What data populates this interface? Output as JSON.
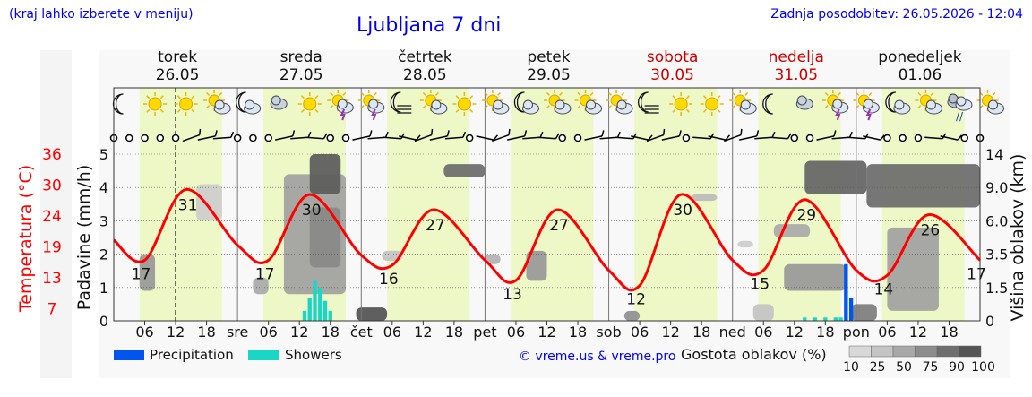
{
  "header": {
    "left_note": "(kraj lahko izberete v meniju)",
    "title": "Ljubljana 7 dni",
    "updated": "Zadnja posodobitev: 26.05.2026 - 12:04"
  },
  "days": [
    {
      "name": "torek",
      "date": "26.05",
      "weekend": false,
      "short": ""
    },
    {
      "name": "sreda",
      "date": "27.05",
      "weekend": false,
      "short": "sre"
    },
    {
      "name": "četrtek",
      "date": "28.05",
      "weekend": false,
      "short": "čet"
    },
    {
      "name": "petek",
      "date": "29.05",
      "weekend": false,
      "short": "pet"
    },
    {
      "name": "sobota",
      "date": "30.05",
      "weekend": true,
      "short": "sob"
    },
    {
      "name": "nedelja",
      "date": "31.05",
      "weekend": true,
      "short": "ned"
    },
    {
      "name": "ponedeljek",
      "date": "01.06",
      "weekend": false,
      "short": "pon"
    }
  ],
  "hour_ticks": [
    "06",
    "12",
    "18"
  ],
  "axes": {
    "left_temp_label": "Temperatura (°C)",
    "left_temp_ticks": [
      "36",
      "30",
      "24",
      "19",
      "13",
      "7"
    ],
    "precip_label": "Padavine (mm/h)",
    "precip_ticks": [
      "5",
      "4",
      "3",
      "2",
      "1",
      "0"
    ],
    "cloud_label": "Višina oblakov (km)",
    "cloud_ticks": [
      "14",
      "9.0",
      "6.0",
      "3.5",
      "1.5",
      "0"
    ]
  },
  "legend": {
    "precipitation": "Precipitation",
    "showers": "Showers",
    "credit": "© vreme.us & vreme.pro",
    "cloud_density_label": "Gostota oblakov (%)",
    "cloud_density_ticks": [
      "10",
      "25",
      "50",
      "75",
      "90",
      "100"
    ]
  },
  "colors": {
    "temperature": "#ff0000",
    "precipitation": "#0055ee",
    "showers": "#1ad6c6",
    "daylight": "#eef7c6",
    "night": "#f6f6f6",
    "title": "#0000ee",
    "weekend": "#cc0000"
  },
  "chart_data": {
    "type": "line",
    "x_unit": "hours since 26.05 00:00",
    "x_range": [
      0,
      168
    ],
    "temperature": {
      "ylim_temp": [
        5,
        38
      ],
      "points": [
        [
          0,
          21
        ],
        [
          6,
          17
        ],
        [
          14,
          31
        ],
        [
          24,
          20
        ],
        [
          30,
          17
        ],
        [
          38,
          30
        ],
        [
          48,
          18
        ],
        [
          54,
          16
        ],
        [
          62,
          27
        ],
        [
          72,
          17
        ],
        [
          78,
          13
        ],
        [
          86,
          27
        ],
        [
          96,
          15
        ],
        [
          102,
          12
        ],
        [
          110,
          30
        ],
        [
          120,
          17
        ],
        [
          126,
          15
        ],
        [
          134,
          29
        ],
        [
          144,
          15
        ],
        [
          150,
          14
        ],
        [
          158,
          26
        ],
        [
          168,
          17
        ]
      ],
      "labels": [
        {
          "x": 14,
          "value": "31"
        },
        {
          "x": 6,
          "value": "17"
        },
        {
          "x": 38,
          "value": "30"
        },
        {
          "x": 30,
          "value": "17"
        },
        {
          "x": 62,
          "value": "27"
        },
        {
          "x": 54,
          "value": "16"
        },
        {
          "x": 86,
          "value": "27"
        },
        {
          "x": 78,
          "value": "13"
        },
        {
          "x": 110,
          "value": "30"
        },
        {
          "x": 102,
          "value": "12"
        },
        {
          "x": 134,
          "value": "29"
        },
        {
          "x": 126,
          "value": "15"
        },
        {
          "x": 158,
          "value": "26"
        },
        {
          "x": 150,
          "value": "14"
        },
        {
          "x": 168,
          "value": "17"
        }
      ]
    },
    "precipitation": [
      [
        142,
        1.7
      ],
      [
        143,
        0.7
      ]
    ],
    "showers": [
      [
        37,
        0.3
      ],
      [
        38,
        0.7
      ],
      [
        39,
        1.2
      ],
      [
        40,
        1.0
      ],
      [
        41,
        0.6
      ],
      [
        42,
        0.3
      ],
      [
        134,
        0.1
      ],
      [
        136,
        0.1
      ],
      [
        138,
        0.1
      ],
      [
        140,
        0.1
      ],
      [
        141,
        0.1
      ]
    ],
    "clouds": [
      {
        "x0": 5,
        "x1": 8,
        "y0": 0.9,
        "y1": 2.0,
        "density": 45
      },
      {
        "x0": 16,
        "x1": 21,
        "y0": 3.0,
        "y1": 4.1,
        "density": 15
      },
      {
        "x0": 27,
        "x1": 30,
        "y0": 0.8,
        "y1": 1.3,
        "density": 35
      },
      {
        "x0": 33,
        "x1": 45,
        "y0": 0.8,
        "y1": 4.4,
        "density": 40
      },
      {
        "x0": 38,
        "x1": 44,
        "y0": 1.6,
        "y1": 3.4,
        "density": 55
      },
      {
        "x0": 38,
        "x1": 44,
        "y0": 3.8,
        "y1": 5.0,
        "density": 80
      },
      {
        "x0": 47,
        "x1": 53,
        "y0": 0.0,
        "y1": 0.4,
        "density": 85
      },
      {
        "x0": 52,
        "x1": 56,
        "y0": 1.8,
        "y1": 2.1,
        "density": 20
      },
      {
        "x0": 64,
        "x1": 72,
        "y0": 4.3,
        "y1": 4.7,
        "density": 70
      },
      {
        "x0": 72,
        "x1": 75,
        "y0": 1.7,
        "y1": 2.0,
        "density": 30
      },
      {
        "x0": 80,
        "x1": 84,
        "y0": 1.2,
        "y1": 2.1,
        "density": 45
      },
      {
        "x0": 99,
        "x1": 102,
        "y0": 0.0,
        "y1": 0.3,
        "density": 50
      },
      {
        "x0": 112,
        "x1": 117,
        "y0": 3.6,
        "y1": 3.8,
        "density": 25
      },
      {
        "x0": 121,
        "x1": 124,
        "y0": 2.2,
        "y1": 2.4,
        "density": 15
      },
      {
        "x0": 124,
        "x1": 128,
        "y0": 0.0,
        "y1": 0.5,
        "density": 20
      },
      {
        "x0": 128,
        "x1": 135,
        "y0": 2.5,
        "y1": 2.9,
        "density": 35
      },
      {
        "x0": 130,
        "x1": 142,
        "y0": 0.9,
        "y1": 1.7,
        "density": 45
      },
      {
        "x0": 134,
        "x1": 146,
        "y0": 3.8,
        "y1": 4.8,
        "density": 75
      },
      {
        "x0": 143,
        "x1": 148,
        "y0": 0.0,
        "y1": 0.5,
        "density": 60
      },
      {
        "x0": 146,
        "x1": 168,
        "y0": 3.4,
        "y1": 4.7,
        "density": 70
      },
      {
        "x0": 150,
        "x1": 160,
        "y0": 0.3,
        "y1": 2.8,
        "density": 40
      }
    ],
    "current_time_x": 12,
    "weather_icons": [
      {
        "x": 1.5,
        "type": "moon"
      },
      {
        "x": 4.5,
        "type": "sun"
      },
      {
        "x": 7.5,
        "type": "sun"
      },
      {
        "x": 10.5,
        "type": "sun-cloud"
      },
      {
        "x": 13.5,
        "type": "moon-cloud"
      },
      {
        "x": 16.5,
        "type": "cloud"
      },
      {
        "x": 19.5,
        "type": "sun"
      },
      {
        "x": 22.5,
        "type": "sun-storm"
      },
      {
        "x": 25.5,
        "type": "sun-storm"
      },
      {
        "x": 28.5,
        "type": "moon-fog"
      },
      {
        "x": 31.5,
        "type": "sun-cloud"
      },
      {
        "x": 34.5,
        "type": "sun"
      },
      {
        "x": 37.5,
        "type": "sun-cloud"
      },
      {
        "x": 40.5,
        "type": "moon-cloud"
      },
      {
        "x": 43.5,
        "type": "sun-cloud"
      },
      {
        "x": 46.5,
        "type": "sun-cloud"
      },
      {
        "x": 49.5,
        "type": "sun-cloud"
      },
      {
        "x": 52.5,
        "type": "moon-fog"
      },
      {
        "x": 55.5,
        "type": "sun"
      },
      {
        "x": 58.5,
        "type": "sun"
      },
      {
        "x": 61.5,
        "type": "sun-cloud"
      },
      {
        "x": 64.5,
        "type": "moon"
      },
      {
        "x": 67.5,
        "type": "cloud"
      },
      {
        "x": 70.5,
        "type": "sun-storm"
      },
      {
        "x": 73.5,
        "type": "sun-storm"
      },
      {
        "x": 76.5,
        "type": "moon-cloud"
      },
      {
        "x": 79.5,
        "type": "sun-cloud"
      },
      {
        "x": 82.5,
        "type": "cloud-rain"
      },
      {
        "x": 85.5,
        "type": "sun-cloud"
      }
    ],
    "wind_symbols": [
      "calm",
      "calm",
      "calm",
      "calm",
      "calm",
      "barb",
      "barb",
      "barb",
      "calm",
      "calm",
      "calm",
      "barb",
      "barb",
      "barb",
      "calm",
      "calm",
      "barb",
      "barb",
      "barb",
      "barb",
      "barb",
      "barb",
      "barb",
      "calm",
      "barb",
      "barb",
      "barb",
      "barb",
      "barb",
      "calm",
      "calm",
      "barb",
      "barb",
      "barb",
      "barb",
      "barb",
      "barb",
      "calm",
      "barb",
      "barb",
      "barb",
      "barb",
      "barb",
      "barb",
      "calm",
      "calm",
      "barb",
      "barb",
      "barb",
      "barb",
      "calm",
      "calm",
      "calm",
      "barb",
      "barb",
      "calm",
      "calm"
    ]
  }
}
